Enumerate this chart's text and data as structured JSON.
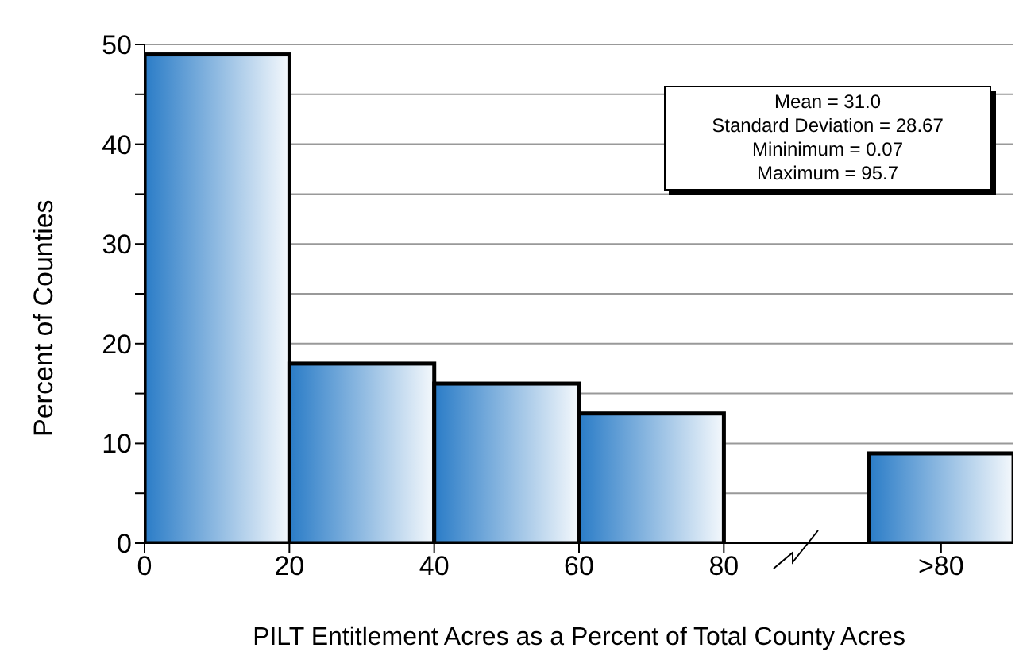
{
  "chart_data": {
    "type": "bar",
    "xlabel": "PILT Entitlement Acres as a Percent of Total County Acres",
    "ylabel": "Percent of Counties",
    "x": [
      10,
      30,
      50,
      70,
      110
    ],
    "values": [
      49,
      18,
      16,
      13,
      9
    ],
    "color": "#2a7cc7",
    "xlim": [
      0,
      120
    ],
    "xticks": [
      0,
      20,
      40,
      60,
      80,
      {
        "value": 110,
        "label": ">80"
      }
    ],
    "ylim": [
      0,
      50
    ],
    "yticks": [
      0,
      {
        "value": 5,
        "label": null
      },
      10,
      {
        "value": 15,
        "label": null
      },
      20,
      {
        "value": 25,
        "label": null
      },
      30,
      {
        "value": 35,
        "label": null
      },
      40,
      {
        "value": 45,
        "label": null
      },
      50
    ],
    "grid": "y",
    "annotations": [
      "Mean = 31.0",
      "Standard Deviation = 28.67",
      "Mininimum = 0.07",
      "Maximum = 95.7"
    ]
  }
}
